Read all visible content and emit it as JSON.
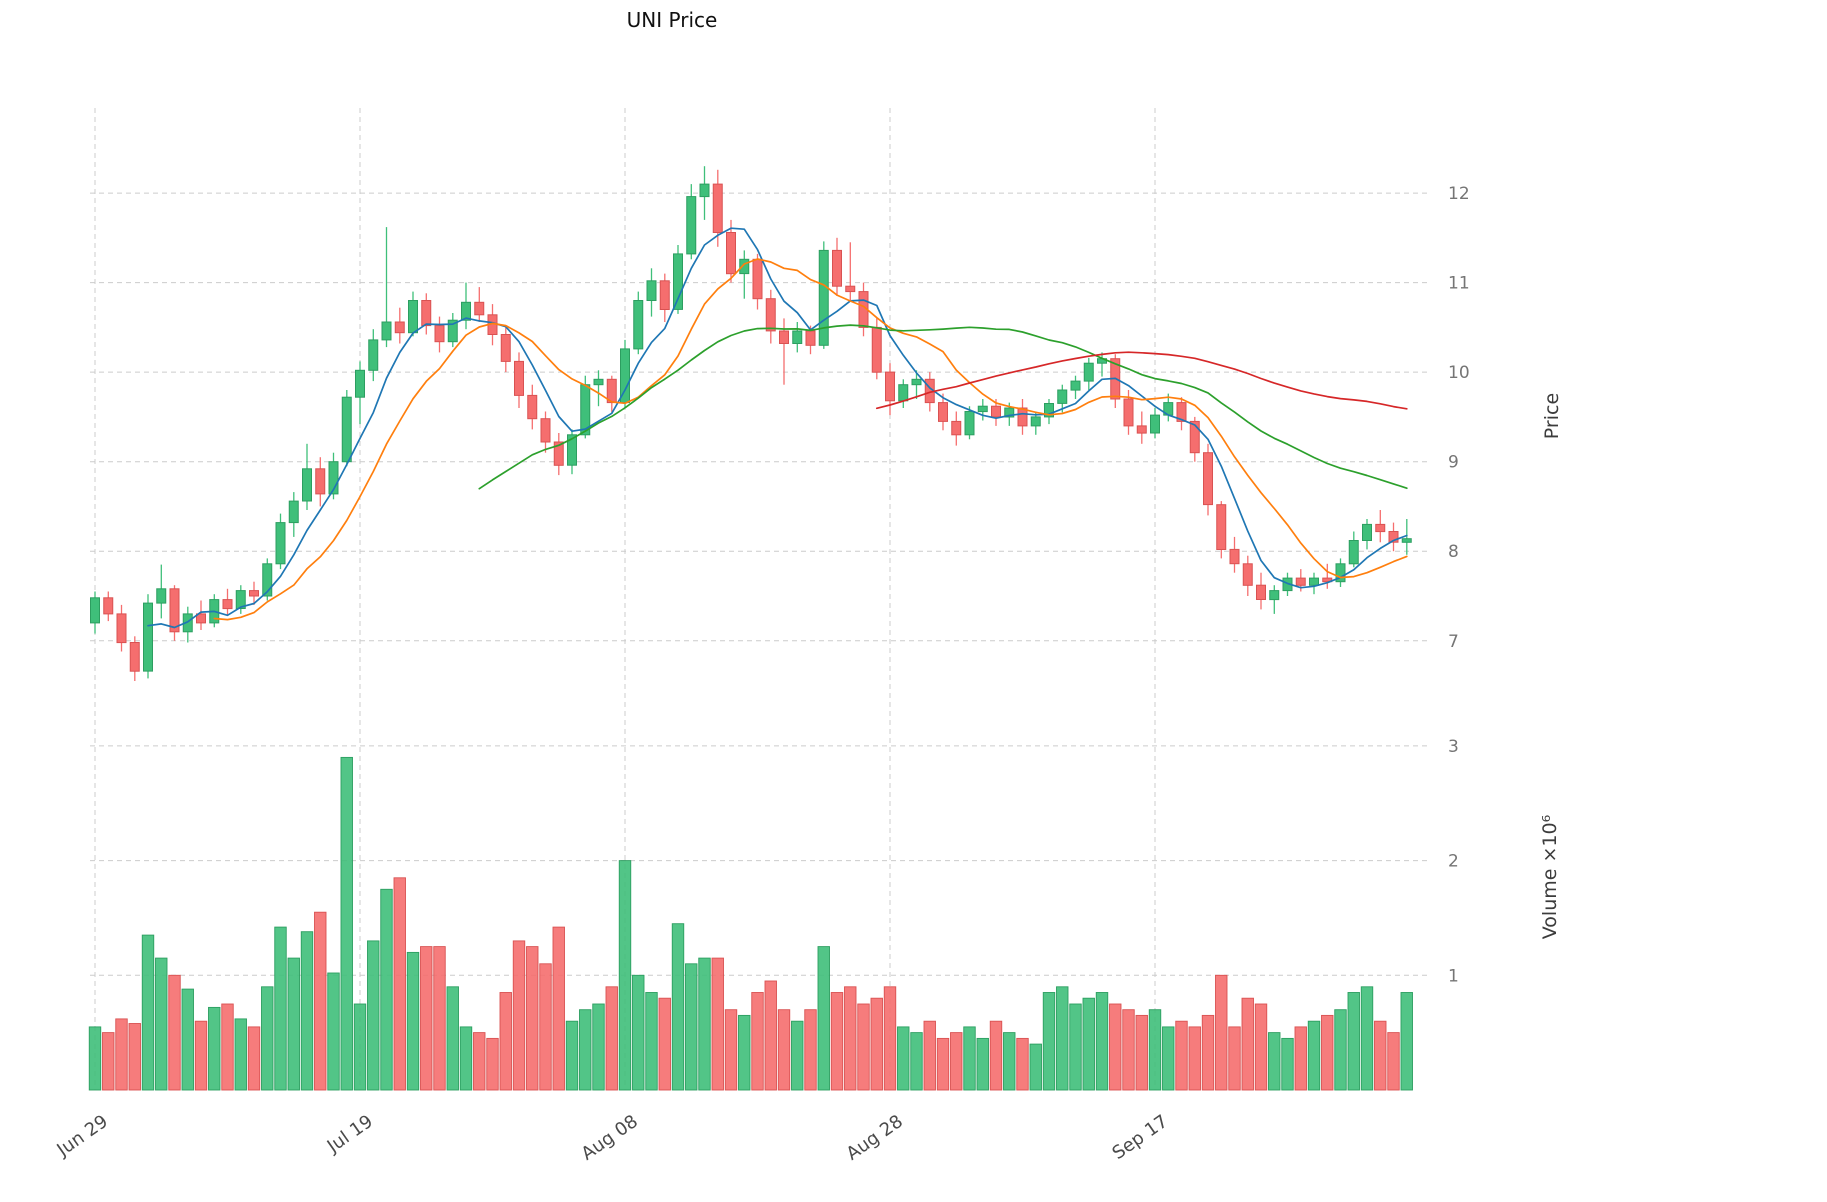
{
  "title": "UNI Price",
  "axes": {
    "price_label": "Price",
    "volume_label": "Volume ×10⁶",
    "price_ticks": [
      7,
      8,
      9,
      10,
      11,
      12
    ],
    "volume_ticks": [
      1,
      2,
      3
    ],
    "x_tick_labels": [
      "Jun 29",
      "Jul 19",
      "Aug 08",
      "Aug 28",
      "Sep 17"
    ],
    "x_tick_indices": [
      0,
      20,
      40,
      60,
      80
    ]
  },
  "colors": {
    "up": "#3fbf7a",
    "up_edge": "#2c9e60",
    "down": "#f56e6e",
    "down_edge": "#d95252",
    "ma": [
      "#1f77b4",
      "#ff7f0e",
      "#2ca02c",
      "#d62728"
    ],
    "grid": "#cccccc",
    "tick_text": "#757575",
    "date_text": "#4a4a4a"
  },
  "chart_data": {
    "type": "candlestick",
    "panels": [
      "price",
      "volume"
    ],
    "title": "UNI Price",
    "ylabel": "Price",
    "ylabel2": "Volume ×10⁶",
    "price_axis_range": [
      6.45,
      12.95
    ],
    "volume_axis_range_millions": [
      0,
      3.4
    ],
    "grid": "dashed",
    "x_tick_labels": [
      "Jun 29",
      "Jul 19",
      "Aug 08",
      "Aug 28",
      "Sep 17"
    ],
    "x_tick_indices": [
      0,
      20,
      40,
      60,
      80
    ],
    "moving_averages": [
      {
        "name": "MA5",
        "window": 5
      },
      {
        "name": "MA10",
        "window": 10
      },
      {
        "name": "MA30",
        "window": 30
      },
      {
        "name": "MA60",
        "window": 60
      }
    ],
    "ohlc": [
      [
        7.2,
        7.55,
        7.08,
        7.48
      ],
      [
        7.48,
        7.55,
        7.22,
        7.3
      ],
      [
        7.3,
        7.4,
        6.88,
        6.98
      ],
      [
        6.98,
        7.05,
        6.55,
        6.66
      ],
      [
        6.66,
        7.52,
        6.58,
        7.42
      ],
      [
        7.42,
        7.85,
        7.25,
        7.58
      ],
      [
        7.58,
        7.62,
        7.0,
        7.1
      ],
      [
        7.1,
        7.38,
        6.98,
        7.3
      ],
      [
        7.3,
        7.45,
        7.12,
        7.2
      ],
      [
        7.2,
        7.52,
        7.15,
        7.46
      ],
      [
        7.46,
        7.58,
        7.28,
        7.36
      ],
      [
        7.36,
        7.62,
        7.3,
        7.56
      ],
      [
        7.56,
        7.66,
        7.4,
        7.5
      ],
      [
        7.5,
        7.92,
        7.45,
        7.86
      ],
      [
        7.86,
        8.42,
        7.8,
        8.32
      ],
      [
        8.32,
        8.66,
        8.16,
        8.56
      ],
      [
        8.56,
        9.2,
        8.46,
        8.92
      ],
      [
        8.92,
        9.05,
        8.5,
        8.64
      ],
      [
        8.64,
        9.1,
        8.58,
        9.0
      ],
      [
        9.0,
        9.8,
        8.95,
        9.72
      ],
      [
        9.72,
        10.12,
        9.42,
        10.02
      ],
      [
        10.02,
        10.48,
        9.9,
        10.36
      ],
      [
        10.36,
        11.62,
        10.28,
        10.56
      ],
      [
        10.56,
        10.72,
        10.32,
        10.44
      ],
      [
        10.44,
        10.9,
        10.4,
        10.8
      ],
      [
        10.8,
        10.88,
        10.42,
        10.52
      ],
      [
        10.52,
        10.62,
        10.22,
        10.34
      ],
      [
        10.34,
        10.66,
        10.28,
        10.58
      ],
      [
        10.58,
        11.0,
        10.48,
        10.78
      ],
      [
        10.78,
        10.95,
        10.56,
        10.64
      ],
      [
        10.64,
        10.76,
        10.3,
        10.42
      ],
      [
        10.42,
        10.52,
        10.0,
        10.12
      ],
      [
        10.12,
        10.22,
        9.6,
        9.74
      ],
      [
        9.74,
        9.86,
        9.36,
        9.48
      ],
      [
        9.48,
        9.56,
        9.1,
        9.22
      ],
      [
        9.22,
        9.32,
        8.85,
        8.96
      ],
      [
        8.96,
        9.36,
        8.86,
        9.3
      ],
      [
        9.3,
        9.96,
        9.26,
        9.86
      ],
      [
        9.86,
        10.02,
        9.62,
        9.92
      ],
      [
        9.92,
        9.96,
        9.55,
        9.66
      ],
      [
        9.66,
        10.36,
        9.6,
        10.26
      ],
      [
        10.26,
        10.9,
        10.2,
        10.8
      ],
      [
        10.8,
        11.16,
        10.62,
        11.02
      ],
      [
        11.02,
        11.1,
        10.56,
        10.7
      ],
      [
        10.7,
        11.42,
        10.65,
        11.32
      ],
      [
        11.32,
        12.1,
        11.26,
        11.96
      ],
      [
        11.96,
        12.3,
        11.7,
        12.1
      ],
      [
        12.1,
        12.26,
        11.4,
        11.56
      ],
      [
        11.56,
        11.7,
        11.0,
        11.1
      ],
      [
        11.1,
        11.36,
        10.82,
        11.26
      ],
      [
        11.26,
        11.32,
        10.7,
        10.82
      ],
      [
        10.82,
        10.92,
        10.32,
        10.46
      ],
      [
        10.46,
        10.6,
        9.86,
        10.32
      ],
      [
        10.32,
        10.56,
        10.22,
        10.46
      ],
      [
        10.46,
        10.52,
        10.2,
        10.3
      ],
      [
        10.3,
        11.46,
        10.26,
        11.36
      ],
      [
        11.36,
        11.5,
        10.85,
        10.96
      ],
      [
        10.96,
        11.45,
        10.8,
        10.9
      ],
      [
        10.9,
        11.0,
        10.4,
        10.5
      ],
      [
        10.5,
        10.6,
        9.92,
        10.0
      ],
      [
        10.0,
        10.1,
        9.52,
        9.68
      ],
      [
        9.68,
        9.92,
        9.6,
        9.86
      ],
      [
        9.86,
        10.02,
        9.7,
        9.92
      ],
      [
        9.92,
        10.0,
        9.56,
        9.66
      ],
      [
        9.66,
        9.76,
        9.35,
        9.45
      ],
      [
        9.45,
        9.56,
        9.18,
        9.3
      ],
      [
        9.3,
        9.62,
        9.25,
        9.56
      ],
      [
        9.56,
        9.7,
        9.46,
        9.62
      ],
      [
        9.62,
        9.7,
        9.4,
        9.5
      ],
      [
        9.5,
        9.66,
        9.4,
        9.6
      ],
      [
        9.6,
        9.7,
        9.3,
        9.4
      ],
      [
        9.4,
        9.56,
        9.3,
        9.5
      ],
      [
        9.5,
        9.7,
        9.42,
        9.65
      ],
      [
        9.65,
        9.86,
        9.55,
        9.8
      ],
      [
        9.8,
        9.96,
        9.7,
        9.9
      ],
      [
        9.9,
        10.16,
        9.8,
        10.1
      ],
      [
        10.1,
        10.22,
        9.95,
        10.15
      ],
      [
        10.15,
        10.2,
        9.6,
        9.7
      ],
      [
        9.7,
        9.8,
        9.3,
        9.4
      ],
      [
        9.4,
        9.56,
        9.2,
        9.32
      ],
      [
        9.32,
        9.6,
        9.26,
        9.52
      ],
      [
        9.52,
        9.76,
        9.45,
        9.66
      ],
      [
        9.66,
        9.72,
        9.35,
        9.45
      ],
      [
        9.45,
        9.5,
        9.0,
        9.1
      ],
      [
        9.1,
        9.2,
        8.4,
        8.52
      ],
      [
        8.52,
        8.56,
        7.92,
        8.02
      ],
      [
        8.02,
        8.16,
        7.76,
        7.86
      ],
      [
        7.86,
        7.95,
        7.5,
        7.62
      ],
      [
        7.62,
        7.76,
        7.35,
        7.46
      ],
      [
        7.46,
        7.62,
        7.3,
        7.56
      ],
      [
        7.56,
        7.76,
        7.5,
        7.7
      ],
      [
        7.7,
        7.8,
        7.55,
        7.62
      ],
      [
        7.62,
        7.76,
        7.52,
        7.7
      ],
      [
        7.7,
        7.86,
        7.58,
        7.66
      ],
      [
        7.66,
        7.92,
        7.6,
        7.86
      ],
      [
        7.86,
        8.22,
        7.82,
        8.12
      ],
      [
        8.12,
        8.36,
        8.02,
        8.3
      ],
      [
        8.3,
        8.46,
        8.1,
        8.22
      ],
      [
        8.22,
        8.32,
        8.0,
        8.1
      ],
      [
        8.1,
        8.36,
        7.96,
        8.14
      ]
    ],
    "volume_millions": [
      0.55,
      0.5,
      0.62,
      0.58,
      1.35,
      1.15,
      1.0,
      0.88,
      0.6,
      0.72,
      0.75,
      0.62,
      0.55,
      0.9,
      1.42,
      1.15,
      1.38,
      1.55,
      1.02,
      2.9,
      0.75,
      1.3,
      1.75,
      1.85,
      1.2,
      1.25,
      1.25,
      0.9,
      0.55,
      0.5,
      0.45,
      0.85,
      1.3,
      1.25,
      1.1,
      1.42,
      0.6,
      0.7,
      0.75,
      0.9,
      2.0,
      1.0,
      0.85,
      0.8,
      1.45,
      1.1,
      1.15,
      1.15,
      0.7,
      0.65,
      0.85,
      0.95,
      0.7,
      0.6,
      0.7,
      1.25,
      0.85,
      0.9,
      0.75,
      0.8,
      0.9,
      0.55,
      0.5,
      0.6,
      0.45,
      0.5,
      0.55,
      0.45,
      0.6,
      0.5,
      0.45,
      0.4,
      0.85,
      0.9,
      0.75,
      0.8,
      0.85,
      0.75,
      0.7,
      0.65,
      0.7,
      0.55,
      0.6,
      0.55,
      0.65,
      1.0,
      0.55,
      0.8,
      0.75,
      0.5,
      0.45,
      0.55,
      0.6,
      0.65,
      0.7,
      0.85,
      0.9,
      0.6,
      0.5,
      0.85
    ]
  }
}
